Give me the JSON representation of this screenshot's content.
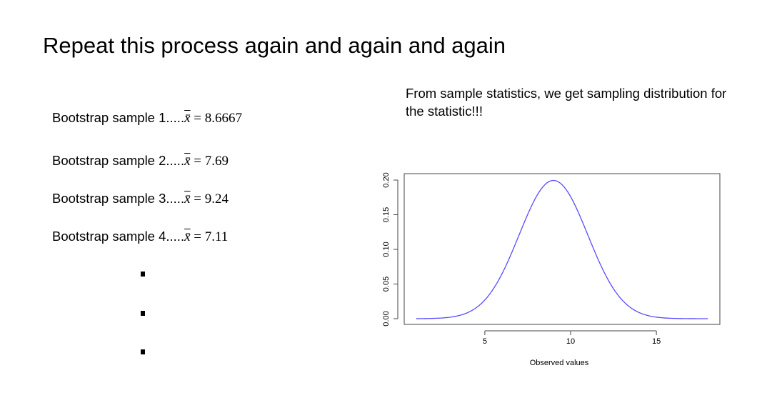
{
  "slide": {
    "title": "Repeat this process again and again and again",
    "caption": "From sample statistics, we get sampling distribution for the statistic!!!"
  },
  "samples": [
    {
      "label": "Bootstrap sample 1.....",
      "stat": "x̄",
      "value": "= 8.6667"
    },
    {
      "label": "Bootstrap sample 2.....",
      "stat": "x̄",
      "value": "= 7.69"
    },
    {
      "label": "Bootstrap sample 3.....",
      "stat": "x̄",
      "value": "= 9.24"
    },
    {
      "label": "Bootstrap sample 4.....",
      "stat": "x̄",
      "value": "= 7.11"
    }
  ],
  "chart_data": {
    "type": "line",
    "title": "",
    "xlabel": "Observed values",
    "ylabel": "",
    "xlim": [
      0.3,
      18.7
    ],
    "ylim": [
      0,
      0.2
    ],
    "x_ticks": [
      5,
      10,
      15
    ],
    "y_ticks": [
      0.0,
      0.05,
      0.1,
      0.15,
      0.2
    ],
    "y_tick_labels": [
      "0.00",
      "0.05",
      "0.10",
      "0.15",
      "0.20"
    ],
    "grid": false,
    "series": [
      {
        "color": "#5a4bff",
        "distribution": "normal",
        "mean": 9,
        "sd": 2,
        "x": [
          1,
          2,
          3,
          4,
          5,
          6,
          7,
          8,
          9,
          10,
          11,
          12,
          13,
          14,
          15,
          16,
          17,
          18
        ],
        "y": [
          0.0,
          0.0001,
          0.0022,
          0.0088,
          0.027,
          0.0648,
          0.121,
          0.176,
          0.1995,
          0.176,
          0.121,
          0.0648,
          0.027,
          0.0088,
          0.0022,
          0.0004,
          0.0001,
          0.0
        ]
      }
    ]
  }
}
